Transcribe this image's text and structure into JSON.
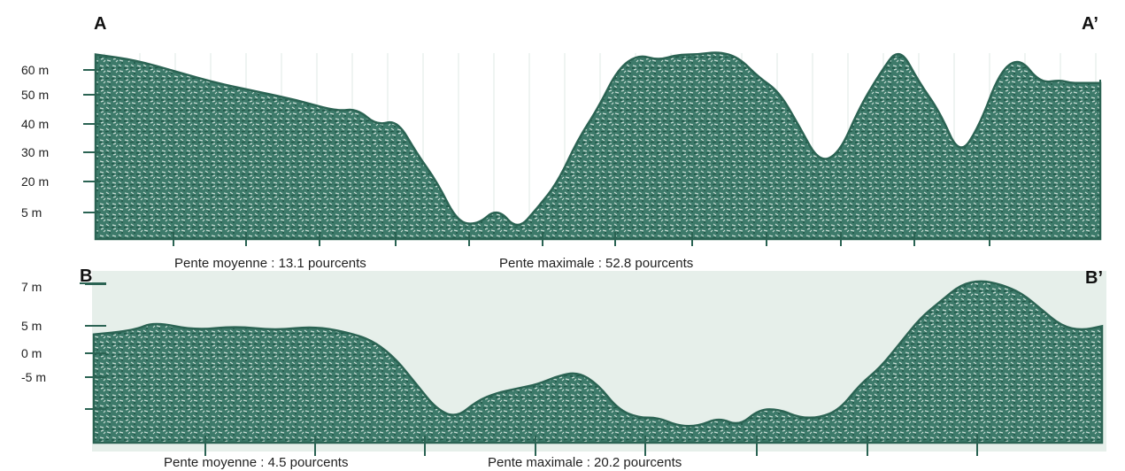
{
  "colors": {
    "fill": "#2f6d5e",
    "outline": "#2b6353",
    "background_band": "#e6efea",
    "text": "#222222"
  },
  "chart_data": [
    {
      "type": "area",
      "start_label": "A",
      "end_label": "A’",
      "ylabel_ticks": [
        "60 m",
        "50 m",
        "40 m",
        "30 m",
        "20 m",
        "5 m"
      ],
      "ylim": [
        0,
        73
      ],
      "annotations": [
        "Pente moyenne : 13.1 pourcents",
        "Pente maximale : 52.8 pourcents"
      ],
      "x": [
        0,
        0.04,
        0.08,
        0.12,
        0.16,
        0.2,
        0.24,
        0.26,
        0.28,
        0.3,
        0.32,
        0.34,
        0.36,
        0.38,
        0.4,
        0.42,
        0.44,
        0.46,
        0.48,
        0.5,
        0.52,
        0.54,
        0.56,
        0.58,
        0.6,
        0.62,
        0.64,
        0.66,
        0.68,
        0.7,
        0.72,
        0.74,
        0.76,
        0.78,
        0.8,
        0.82,
        0.84,
        0.86,
        0.88,
        0.9,
        0.92,
        0.94,
        0.96,
        0.97,
        0.98,
        1.0
      ],
      "y": [
        65,
        63,
        59,
        55,
        52,
        49,
        45,
        46,
        40,
        42,
        30,
        20,
        6,
        5,
        11,
        3,
        11,
        20,
        35,
        46,
        60,
        65,
        63,
        65,
        65,
        66,
        64,
        57,
        52,
        40,
        27,
        30,
        46,
        58,
        68,
        55,
        45,
        29,
        40,
        59,
        64,
        55,
        56,
        55,
        55,
        55
      ]
    },
    {
      "type": "area",
      "start_label": "B",
      "end_label": "B’",
      "ylabel_ticks": [
        "7 m",
        "5 m",
        "0 m",
        "-5 m"
      ],
      "ylim": [
        -12,
        8
      ],
      "annotations": [
        "Pente moyenne : 4.5 pourcents",
        "Pente maximale : 20.2 pourcents"
      ],
      "x": [
        0,
        0.04,
        0.06,
        0.1,
        0.14,
        0.18,
        0.22,
        0.26,
        0.28,
        0.3,
        0.32,
        0.34,
        0.36,
        0.38,
        0.4,
        0.42,
        0.44,
        0.46,
        0.48,
        0.5,
        0.52,
        0.54,
        0.56,
        0.58,
        0.6,
        0.62,
        0.64,
        0.66,
        0.68,
        0.7,
        0.72,
        0.74,
        0.76,
        0.78,
        0.8,
        0.82,
        0.84,
        0.86,
        0.88,
        0.9,
        0.92,
        0.94,
        0.96,
        0.98,
        1.0
      ],
      "y": [
        1,
        1.5,
        2.5,
        1.5,
        2,
        1.5,
        2,
        1,
        0,
        -2,
        -5,
        -8,
        -9,
        -7,
        -6,
        -5.5,
        -5,
        -4,
        -3.5,
        -5,
        -8,
        -9,
        -9,
        -10,
        -10,
        -9,
        -10,
        -8,
        -8,
        -9,
        -9,
        -8,
        -5,
        -3,
        0,
        3,
        5,
        7,
        7.5,
        7,
        6,
        4,
        2,
        1.5,
        2
      ]
    }
  ]
}
